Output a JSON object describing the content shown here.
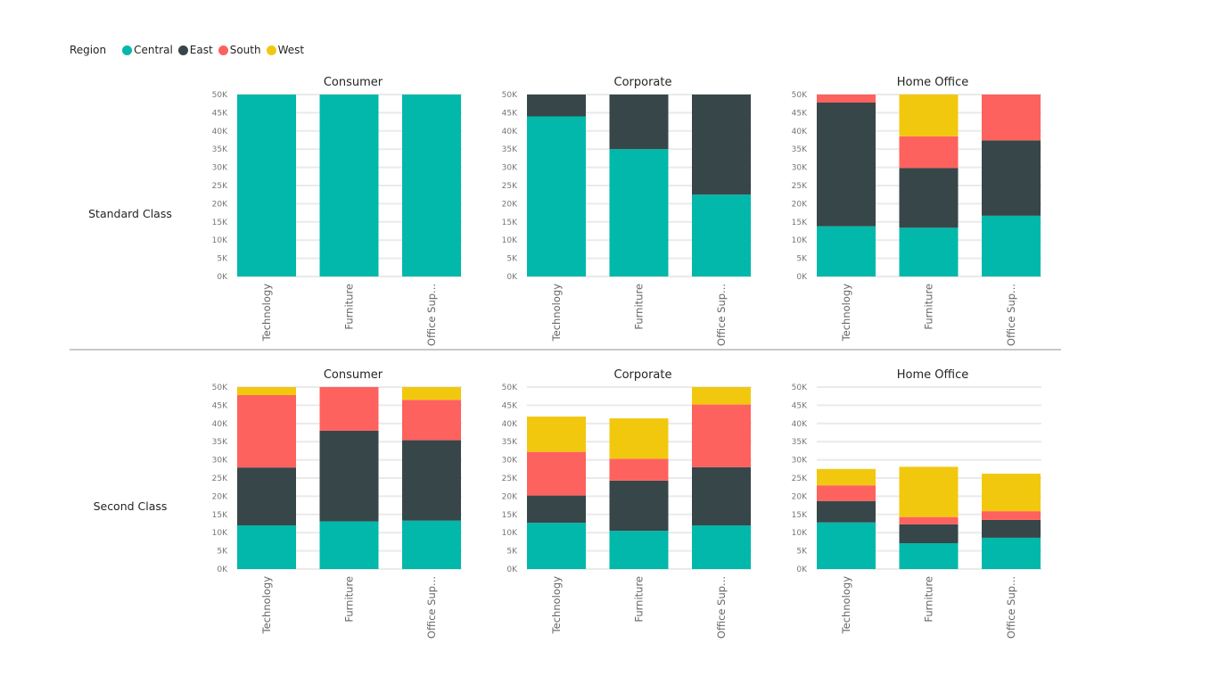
{
  "legend": {
    "title": "Region",
    "items": [
      {
        "name": "Central",
        "color": "#01B8AA"
      },
      {
        "name": "East",
        "color": "#374649"
      },
      {
        "name": "South",
        "color": "#FD625E"
      },
      {
        "name": "West",
        "color": "#F2C80F"
      }
    ]
  },
  "rows": [
    {
      "label": "Standard Class"
    },
    {
      "label": "Second Class"
    }
  ],
  "chart_data": [
    {
      "type": "bar",
      "stacked": true,
      "title": "Consumer",
      "row": "Standard Class",
      "categories": [
        "Technology",
        "Furniture",
        "Office Sup..."
      ],
      "ylim": [
        0,
        50000
      ],
      "yticks": [
        "0K",
        "5K",
        "10K",
        "15K",
        "20K",
        "25K",
        "30K",
        "35K",
        "40K",
        "45K",
        "50K"
      ],
      "series": [
        {
          "name": "Central",
          "values": [
            50000,
            50000,
            50000
          ]
        },
        {
          "name": "East",
          "values": [
            0,
            0,
            0
          ]
        },
        {
          "name": "South",
          "values": [
            0,
            0,
            0
          ]
        },
        {
          "name": "West",
          "values": [
            0,
            0,
            0
          ]
        }
      ]
    },
    {
      "type": "bar",
      "stacked": true,
      "title": "Corporate",
      "row": "Standard Class",
      "categories": [
        "Technology",
        "Furniture",
        "Office Sup..."
      ],
      "ylim": [
        0,
        50000
      ],
      "yticks": [
        "0K",
        "5K",
        "10K",
        "15K",
        "20K",
        "25K",
        "30K",
        "35K",
        "40K",
        "45K",
        "50K"
      ],
      "series": [
        {
          "name": "Central",
          "values": [
            44000,
            35000,
            22500
          ]
        },
        {
          "name": "East",
          "values": [
            6000,
            15000,
            27500
          ]
        },
        {
          "name": "South",
          "values": [
            0,
            0,
            0
          ]
        },
        {
          "name": "West",
          "values": [
            0,
            0,
            0
          ]
        }
      ]
    },
    {
      "type": "bar",
      "stacked": true,
      "title": "Home Office",
      "row": "Standard Class",
      "categories": [
        "Technology",
        "Furniture",
        "Office Sup..."
      ],
      "ylim": [
        0,
        50000
      ],
      "yticks": [
        "0K",
        "5K",
        "10K",
        "15K",
        "20K",
        "25K",
        "30K",
        "35K",
        "40K",
        "45K",
        "50K"
      ],
      "series": [
        {
          "name": "Central",
          "values": [
            13800,
            13400,
            16700
          ]
        },
        {
          "name": "East",
          "values": [
            34000,
            16400,
            20700
          ]
        },
        {
          "name": "South",
          "values": [
            2200,
            8700,
            12600
          ]
        },
        {
          "name": "West",
          "values": [
            0,
            11500,
            0
          ]
        }
      ]
    },
    {
      "type": "bar",
      "stacked": true,
      "title": "Consumer",
      "row": "Second Class",
      "categories": [
        "Technology",
        "Furniture",
        "Office Sup..."
      ],
      "ylim": [
        0,
        50000
      ],
      "yticks": [
        "0K",
        "5K",
        "10K",
        "15K",
        "20K",
        "25K",
        "30K",
        "35K",
        "40K",
        "45K",
        "50K"
      ],
      "series": [
        {
          "name": "Central",
          "values": [
            12000,
            13100,
            13300
          ]
        },
        {
          "name": "East",
          "values": [
            15900,
            24900,
            22100
          ]
        },
        {
          "name": "South",
          "values": [
            19900,
            12000,
            11100
          ]
        },
        {
          "name": "West",
          "values": [
            2200,
            0,
            3500
          ]
        }
      ]
    },
    {
      "type": "bar",
      "stacked": true,
      "title": "Corporate",
      "row": "Second Class",
      "categories": [
        "Technology",
        "Furniture",
        "Office Sup..."
      ],
      "ylim": [
        0,
        50000
      ],
      "yticks": [
        "0K",
        "5K",
        "10K",
        "15K",
        "20K",
        "25K",
        "30K",
        "35K",
        "40K",
        "45K",
        "50K"
      ],
      "series": [
        {
          "name": "Central",
          "values": [
            12700,
            10500,
            12000
          ]
        },
        {
          "name": "East",
          "values": [
            7500,
            13800,
            16000
          ]
        },
        {
          "name": "South",
          "values": [
            12000,
            6000,
            17200
          ]
        },
        {
          "name": "West",
          "values": [
            9700,
            11100,
            4800
          ]
        }
      ]
    },
    {
      "type": "bar",
      "stacked": true,
      "title": "Home Office",
      "row": "Second Class",
      "categories": [
        "Technology",
        "Furniture",
        "Office Sup..."
      ],
      "ylim": [
        0,
        50000
      ],
      "yticks": [
        "0K",
        "5K",
        "10K",
        "15K",
        "20K",
        "25K",
        "30K",
        "35K",
        "40K",
        "45K",
        "50K"
      ],
      "series": [
        {
          "name": "Central",
          "values": [
            12800,
            7100,
            8600
          ]
        },
        {
          "name": "East",
          "values": [
            5900,
            5200,
            4900
          ]
        },
        {
          "name": "South",
          "values": [
            4300,
            2000,
            2400
          ]
        },
        {
          "name": "West",
          "values": [
            4500,
            13800,
            10300
          ]
        }
      ]
    }
  ]
}
